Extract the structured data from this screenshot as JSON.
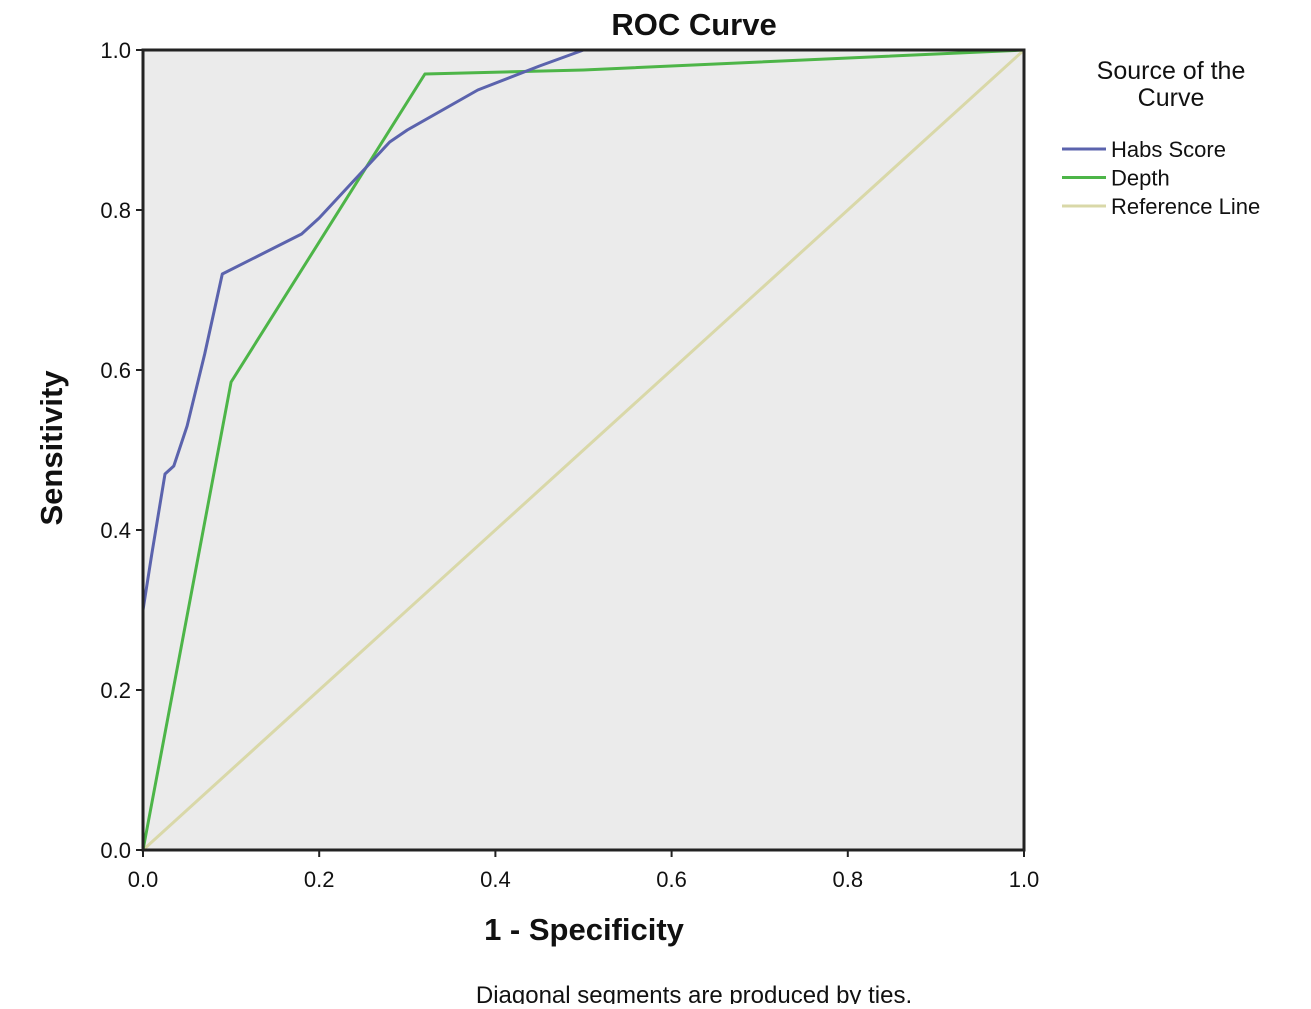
{
  "chart_data": {
    "type": "line",
    "title": "ROC Curve",
    "xlabel": "1 - Specificity",
    "ylabel": "Sensitivity",
    "footnote": "Diagonal segments are produced by ties.",
    "xlim": [
      0,
      1
    ],
    "ylim": [
      0,
      1
    ],
    "x_ticks": [
      0.0,
      0.2,
      0.4,
      0.6,
      0.8,
      1.0
    ],
    "y_ticks": [
      0.0,
      0.2,
      0.4,
      0.6,
      0.8,
      1.0
    ],
    "x_tick_labels": [
      "0.0",
      "0.2",
      "0.4",
      "0.6",
      "0.8",
      "1.0"
    ],
    "y_tick_labels": [
      "0.0",
      "0.2",
      "0.4",
      "0.6",
      "0.8",
      "1.0"
    ],
    "grid": false,
    "legend": {
      "title": "Source of the Curve",
      "position": "right"
    },
    "plot_background": "#ebebeb",
    "series": [
      {
        "name": "Habs Score",
        "color": "#5b63ad",
        "x": [
          0.0,
          0.0,
          0.01,
          0.025,
          0.035,
          0.05,
          0.07,
          0.09,
          0.18,
          0.2,
          0.28,
          0.3,
          0.38,
          0.45,
          0.5,
          0.55,
          0.7,
          1.0
        ],
        "y": [
          0.0,
          0.3,
          0.37,
          0.47,
          0.48,
          0.53,
          0.62,
          0.72,
          0.77,
          0.79,
          0.885,
          0.9,
          0.95,
          0.98,
          1.0,
          1.0,
          1.0,
          1.0
        ]
      },
      {
        "name": "Depth",
        "color": "#4db548",
        "x": [
          0.0,
          0.1,
          0.32,
          0.5,
          1.0
        ],
        "y": [
          0.0,
          0.585,
          0.97,
          0.975,
          1.0
        ]
      },
      {
        "name": "Reference Line",
        "color": "#d9d8a8",
        "x": [
          0.0,
          1.0
        ],
        "y": [
          0.0,
          1.0
        ]
      }
    ]
  }
}
